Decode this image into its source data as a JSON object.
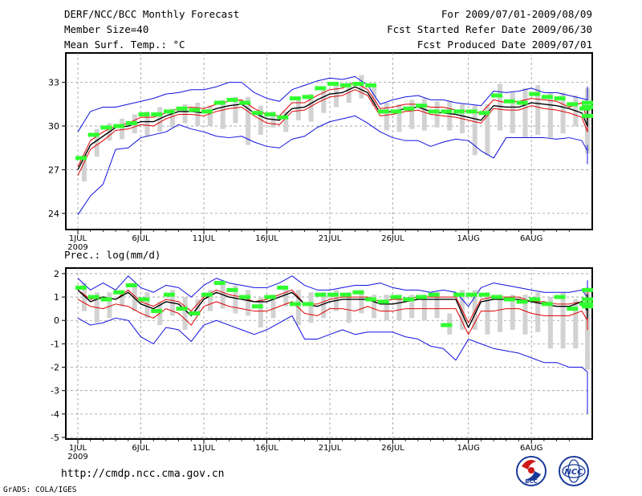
{
  "header": {
    "title": "DERF/NCC/BCC Monthly Forecast",
    "member_size": "Member Size=40",
    "variable": "Mean Surf. Temp.: °C",
    "period": "For 2009/07/01-2009/08/09",
    "started": "Fcst Started Refer Date 2009/06/30",
    "produced": "Fcst Produced Date 2009/07/01"
  },
  "footer": {
    "url": "http://cmdp.ncc.cma.gov.cn",
    "credit": "GrADS: COLA/IGES",
    "logo_bcc": "BCC",
    "logo_ncc": "NCC"
  },
  "colors": {
    "envelope": "#1010e0",
    "quartile": "#e00000",
    "median": "#000000",
    "spread_bar": "#d2d2d2",
    "member_mark": "#30ff30"
  },
  "chart_data": [
    {
      "type": "line",
      "title": "Mean Surf. Temp.: °C",
      "ylim": [
        23,
        34.8
      ],
      "yticks": [
        24,
        27,
        30,
        33
      ],
      "xlim": [
        0,
        40
      ],
      "xticks": [
        {
          "day": 1,
          "label": "1JUL",
          "sub": "2009"
        },
        {
          "day": 6,
          "label": "6JUL"
        },
        {
          "day": 11,
          "label": "11JUL"
        },
        {
          "day": 16,
          "label": "16JUL"
        },
        {
          "day": 21,
          "label": "21JUL"
        },
        {
          "day": 26,
          "label": "26JUL"
        },
        {
          "day": 32,
          "label": "1AUG"
        },
        {
          "day": 37,
          "label": "6AUG"
        }
      ],
      "series": [
        {
          "name": "max",
          "values": [
            29.6,
            31.0,
            31.3,
            31.3,
            31.5,
            31.7,
            31.9,
            32.2,
            32.3,
            32.5,
            32.5,
            32.7,
            33.0,
            33.0,
            32.3,
            31.9,
            31.7,
            32.5,
            32.8,
            33.1,
            33.3,
            33.2,
            33.4,
            32.8,
            31.5,
            31.8,
            32.0,
            32.1,
            31.8,
            31.8,
            31.6,
            31.5,
            31.4,
            32.4,
            32.3,
            32.4,
            32.6,
            32.3,
            32.3,
            32.1,
            31.9,
            31.8,
            32.7,
            32.3
          ]
        },
        {
          "name": "upper_quartile",
          "values": [
            27.2,
            29.0,
            29.6,
            30.0,
            30.2,
            30.6,
            30.6,
            30.9,
            31.2,
            31.3,
            31.2,
            31.5,
            31.7,
            31.8,
            31.2,
            30.8,
            30.7,
            31.6,
            31.6,
            32.1,
            32.5,
            32.6,
            33.0,
            32.5,
            31.2,
            31.3,
            31.5,
            31.5,
            31.3,
            31.3,
            31.1,
            31.0,
            30.9,
            31.8,
            31.6,
            31.7,
            31.9,
            31.8,
            31.7,
            31.3,
            31.6,
            30.4,
            31.4,
            31.3
          ]
        },
        {
          "name": "median",
          "values": [
            27.0,
            28.7,
            29.3,
            29.9,
            30.0,
            30.3,
            30.3,
            30.7,
            31.0,
            31.0,
            30.9,
            31.2,
            31.4,
            31.5,
            30.9,
            30.5,
            30.4,
            31.2,
            31.3,
            31.8,
            32.2,
            32.3,
            32.7,
            32.3,
            30.9,
            31.0,
            31.2,
            31.3,
            31.0,
            30.9,
            30.8,
            30.6,
            30.4,
            31.4,
            31.3,
            31.3,
            31.6,
            31.5,
            31.4,
            31.2,
            30.9,
            30.0,
            31.1,
            31.0
          ]
        },
        {
          "name": "lower_quartile",
          "values": [
            26.6,
            28.4,
            29.0,
            29.7,
            29.8,
            30.1,
            30.0,
            30.5,
            30.8,
            30.8,
            30.7,
            31.0,
            31.2,
            31.3,
            30.7,
            30.2,
            30.1,
            31.0,
            31.1,
            31.6,
            32.0,
            32.1,
            32.5,
            32.1,
            30.7,
            30.8,
            31.0,
            31.1,
            30.8,
            30.7,
            30.6,
            30.4,
            30.2,
            31.2,
            31.1,
            31.1,
            31.4,
            31.2,
            31.1,
            30.9,
            30.6,
            29.6,
            30.8,
            30.7
          ]
        },
        {
          "name": "min",
          "values": [
            23.9,
            25.2,
            26.0,
            28.4,
            28.5,
            29.2,
            29.4,
            29.6,
            30.1,
            29.8,
            29.6,
            29.3,
            29.2,
            29.3,
            28.9,
            28.6,
            28.5,
            29.1,
            29.3,
            29.9,
            30.3,
            30.5,
            30.7,
            30.2,
            29.6,
            29.2,
            29.0,
            29.0,
            28.6,
            28.9,
            29.1,
            29.0,
            28.3,
            27.8,
            29.2,
            29.2,
            29.2,
            29.2,
            29.1,
            29.2,
            29.0,
            28.3,
            27.4,
            28.7
          ]
        },
        {
          "name": "member_mark",
          "values": [
            27.8,
            29.4,
            29.9,
            30.0,
            30.2,
            30.8,
            30.8,
            31.0,
            31.2,
            31.1,
            31.0,
            31.6,
            31.8,
            31.6,
            30.9,
            30.8,
            30.6,
            31.9,
            32.0,
            32.6,
            32.9,
            32.8,
            32.9,
            32.8,
            31.0,
            31.0,
            31.2,
            31.4,
            31.0,
            31.0,
            31.0,
            31.0,
            30.9,
            32.1,
            31.7,
            31.6,
            32.2,
            32.0,
            31.9,
            31.5,
            31.2,
            30.7,
            31.6,
            31.3
          ]
        },
        {
          "name": "spread_low",
          "values": [
            26.2,
            27.9,
            29.0,
            29.1,
            29.5,
            29.3,
            29.6,
            29.9,
            30.2,
            30.0,
            30.0,
            29.8,
            30.2,
            28.7,
            29.4,
            29.9,
            29.6,
            30.4,
            30.3,
            30.9,
            31.3,
            31.6,
            31.9,
            31.4,
            29.7,
            29.6,
            29.8,
            29.7,
            29.9,
            29.7,
            29.5,
            28.0,
            28.0,
            29.7,
            29.5,
            29.2,
            29.4,
            29.2,
            29.5,
            30.0,
            28.8,
            28.1,
            29.7,
            29.5
          ]
        },
        {
          "name": "spread_high",
          "values": [
            28.0,
            29.8,
            30.2,
            30.5,
            30.8,
            31.0,
            31.3,
            31.2,
            31.5,
            31.6,
            31.4,
            31.8,
            32.0,
            32.0,
            31.4,
            31.0,
            31.0,
            31.9,
            32.2,
            32.7,
            33.0,
            33.0,
            33.5,
            32.7,
            31.6,
            31.5,
            31.8,
            31.9,
            31.7,
            31.7,
            31.5,
            31.4,
            31.5,
            32.9,
            32.3,
            32.6,
            32.8,
            32.3,
            32.3,
            32.1,
            32.0,
            31.8,
            32.6,
            32.1
          ]
        }
      ]
    },
    {
      "type": "line",
      "title": "Prec.: log(mm/d)",
      "ylim": [
        -5,
        2.1
      ],
      "yticks": [
        -5,
        -4,
        -3,
        -2,
        -1,
        0,
        1,
        2
      ],
      "xlim": [
        0,
        40
      ],
      "xticks": [
        {
          "day": 1,
          "label": "1JUL",
          "sub": "2009"
        },
        {
          "day": 6,
          "label": "6JUL"
        },
        {
          "day": 11,
          "label": "11JUL"
        },
        {
          "day": 16,
          "label": "16JUL"
        },
        {
          "day": 21,
          "label": "21JUL"
        },
        {
          "day": 26,
          "label": "26JUL"
        },
        {
          "day": 32,
          "label": "1AUG"
        },
        {
          "day": 37,
          "label": "6AUG"
        }
      ],
      "series": [
        {
          "name": "max",
          "values": [
            1.8,
            1.3,
            1.6,
            1.3,
            1.9,
            1.4,
            1.2,
            1.5,
            1.4,
            1.0,
            1.5,
            1.8,
            1.6,
            1.5,
            1.4,
            1.4,
            1.6,
            1.9,
            1.5,
            1.3,
            1.3,
            1.4,
            1.5,
            1.5,
            1.6,
            1.4,
            1.3,
            1.3,
            1.2,
            1.3,
            1.2,
            0.6,
            1.4,
            1.6,
            1.5,
            1.4,
            1.3,
            1.2,
            1.2,
            1.2,
            1.3,
            1.0,
            1.7,
            1.3,
            1.2
          ]
        },
        {
          "name": "upper_quartile",
          "values": [
            1.3,
            0.9,
            1.0,
            0.9,
            1.3,
            0.8,
            0.6,
            0.9,
            0.8,
            0.4,
            1.0,
            1.3,
            1.1,
            1.0,
            0.8,
            0.9,
            1.1,
            1.3,
            0.7,
            0.7,
            0.9,
            1.0,
            1.0,
            1.0,
            0.8,
            0.9,
            0.9,
            1.0,
            1.0,
            1.0,
            1.0,
            -0.1,
            0.9,
            1.0,
            1.0,
            1.0,
            0.8,
            0.8,
            0.7,
            0.7,
            0.8,
            0.5,
            0.6,
            0.2,
            1.2,
            0.8,
            0.8
          ]
        },
        {
          "name": "median",
          "values": [
            1.3,
            0.8,
            1.0,
            0.9,
            1.2,
            0.7,
            0.5,
            0.8,
            0.7,
            0.2,
            0.9,
            1.2,
            1.0,
            0.9,
            0.8,
            0.8,
            1.0,
            1.2,
            0.7,
            0.6,
            0.8,
            0.9,
            0.9,
            0.9,
            0.7,
            0.7,
            0.8,
            0.9,
            0.9,
            0.9,
            0.9,
            -0.3,
            0.8,
            0.9,
            0.9,
            0.9,
            0.8,
            0.7,
            0.6,
            0.6,
            0.8,
            0.4,
            0.5,
            0.1,
            1.1,
            0.7,
            0.6
          ]
        },
        {
          "name": "lower_quartile",
          "values": [
            0.9,
            0.6,
            0.5,
            0.7,
            0.6,
            0.3,
            0.1,
            0.5,
            0.3,
            -0.2,
            0.6,
            0.8,
            0.6,
            0.5,
            0.4,
            0.4,
            0.6,
            0.8,
            0.3,
            0.2,
            0.5,
            0.5,
            0.4,
            0.6,
            0.4,
            0.4,
            0.5,
            0.5,
            0.5,
            0.5,
            0.5,
            -0.6,
            0.4,
            0.4,
            0.5,
            0.5,
            0.3,
            0.2,
            0.2,
            0.2,
            0.4,
            0.0,
            -0.1,
            -0.4,
            0.6,
            0.2,
            0.0
          ]
        },
        {
          "name": "min",
          "values": [
            0.1,
            -0.2,
            -0.1,
            0.1,
            0.0,
            -0.7,
            -1.0,
            -0.3,
            -0.4,
            -0.9,
            -0.2,
            0.0,
            -0.2,
            -0.4,
            -0.6,
            -0.4,
            -0.1,
            0.2,
            -0.8,
            -0.8,
            -0.6,
            -0.4,
            -0.6,
            -0.5,
            -0.5,
            -0.5,
            -0.7,
            -0.8,
            -1.1,
            -1.2,
            -1.7,
            -0.8,
            -1.0,
            -1.2,
            -1.3,
            -1.4,
            -1.6,
            -1.8,
            -1.8,
            -2.0,
            -2.0,
            -2.2,
            -2.8,
            -3.4,
            -3.8,
            -4.0,
            -4.0
          ]
        },
        {
          "name": "member_mark",
          "values": [
            1.4,
            1.0,
            0.9,
            1.2,
            1.5,
            0.9,
            0.4,
            1.1,
            0.5,
            0.3,
            1.1,
            1.6,
            1.3,
            1.0,
            0.6,
            1.0,
            1.4,
            0.7,
            0.7,
            1.1,
            1.1,
            1.1,
            1.2,
            0.9,
            0.8,
            1.0,
            0.9,
            1.0,
            1.1,
            -0.2,
            1.1,
            1.1,
            1.1,
            1.0,
            0.9,
            0.8,
            0.9,
            0.7,
            1.0,
            0.5,
            0.7,
            0.6,
            1.3,
            0.9,
            0.7
          ]
        },
        {
          "name": "spread_low",
          "values": [
            0.4,
            -0.1,
            0.1,
            0.6,
            0.4,
            0.1,
            -0.2,
            0.2,
            -0.4,
            0.2,
            0.4,
            0.5,
            0.3,
            0.2,
            -0.3,
            0.1,
            0.6,
            -0.2,
            -0.1,
            0.1,
            0.4,
            -0.1,
            0.3,
            0.1,
            0.0,
            0.0,
            0.1,
            0.0,
            0.1,
            -0.6,
            -0.4,
            -0.4,
            -0.6,
            -0.5,
            -0.4,
            -0.6,
            -0.5,
            -1.2,
            -1.2,
            -1.2,
            -1.2,
            -1.0,
            -1.9,
            -0.4,
            -2.1,
            -2.9
          ]
        },
        {
          "name": "spread_high",
          "values": [
            1.6,
            1.2,
            1.2,
            1.3,
            1.6,
            1.2,
            0.8,
            1.3,
            1.0,
            0.9,
            1.3,
            1.6,
            1.5,
            1.3,
            1.0,
            1.1,
            1.4,
            1.3,
            1.2,
            1.2,
            1.3,
            1.2,
            1.3,
            1.1,
            1.1,
            1.1,
            1.1,
            1.1,
            1.2,
            0.3,
            1.3,
            1.3,
            1.2,
            1.1,
            1.1,
            1.1,
            1.2,
            1.0,
            1.2,
            0.9,
            1.0,
            0.9,
            1.4,
            1.0,
            1.0
          ]
        }
      ]
    }
  ]
}
